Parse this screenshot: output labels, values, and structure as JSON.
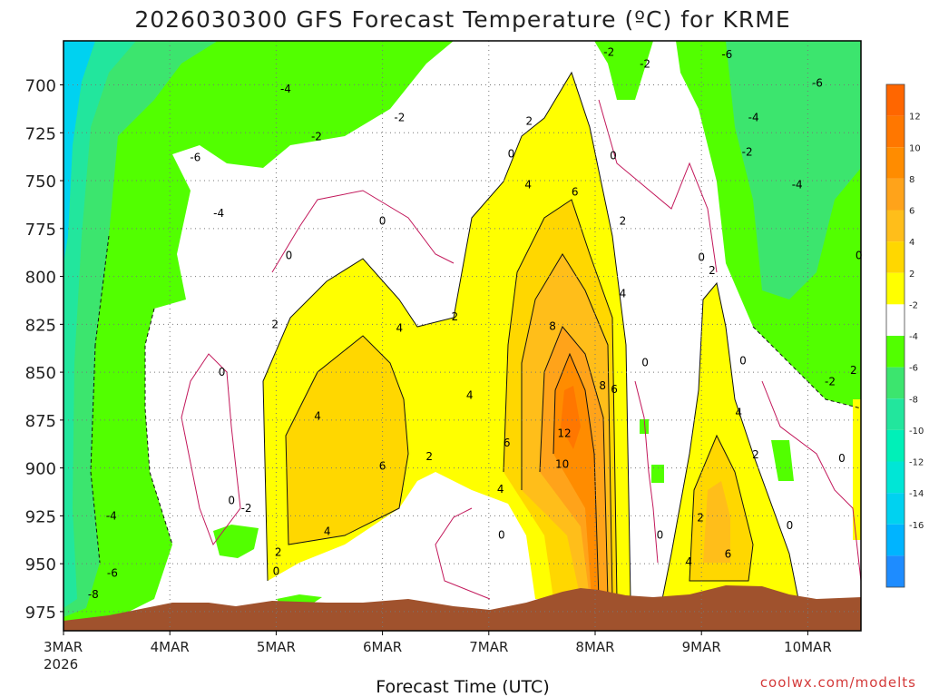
{
  "chart_data": {
    "type": "contour",
    "title": "2026030300 GFS Forecast Temperature (ºC) for KRME",
    "xlabel": "Forecast Time (UTC)",
    "credit": "coolwx.com/modelts",
    "x_ticks": [
      {
        "label": "3MAR",
        "sublabel": "2026",
        "day": 0
      },
      {
        "label": "4MAR",
        "day": 1
      },
      {
        "label": "5MAR",
        "day": 2
      },
      {
        "label": "6MAR",
        "day": 3
      },
      {
        "label": "7MAR",
        "day": 4
      },
      {
        "label": "8MAR",
        "day": 5
      },
      {
        "label": "9MAR",
        "day": 6
      },
      {
        "label": "10MAR",
        "day": 7
      }
    ],
    "xlim": [
      0,
      7.5
    ],
    "y_ticks": [
      700,
      725,
      750,
      775,
      800,
      825,
      850,
      875,
      900,
      925,
      950,
      975
    ],
    "ylim": [
      677,
      985
    ],
    "colorbar": [
      {
        "label": "12",
        "color": "#ff7700"
      },
      {
        "label": "10",
        "color": "#ff8c00"
      },
      {
        "label": "8",
        "color": "#ffa31a"
      },
      {
        "label": "6",
        "color": "#ffbe1a"
      },
      {
        "label": "4",
        "color": "#ffd700"
      },
      {
        "label": "2",
        "color": "#ffff00"
      },
      {
        "label": "-2",
        "color": "#ffffff"
      },
      {
        "label": "-4",
        "color": "#52ff00"
      },
      {
        "label": "-6",
        "color": "#3ce56e"
      },
      {
        "label": "-8",
        "color": "#22e69d"
      },
      {
        "label": "-10",
        "color": "#00f0b8"
      },
      {
        "label": "-12",
        "color": "#00e6d6"
      },
      {
        "label": "-14",
        "color": "#00d2f0"
      },
      {
        "label": "-16",
        "color": "#00b4ff"
      },
      {
        "label": "",
        "color": "#1e8cff"
      }
    ],
    "colorbar_top_color": "#ff6600",
    "terrain_color": "#a0522d",
    "contour_labels": [
      {
        "text": "-2",
        "day": 5.13,
        "p": 683
      },
      {
        "text": "-2",
        "day": 5.47,
        "p": 689
      },
      {
        "text": "-6",
        "day": 6.24,
        "p": 684
      },
      {
        "text": "-4",
        "day": 2.09,
        "p": 702
      },
      {
        "text": "-6",
        "day": 7.09,
        "p": 699
      },
      {
        "text": "-2",
        "day": 3.16,
        "p": 717
      },
      {
        "text": "-4",
        "day": 6.49,
        "p": 717
      },
      {
        "text": "2",
        "day": 4.38,
        "p": 719
      },
      {
        "text": "-2",
        "day": 2.38,
        "p": 727
      },
      {
        "text": "-6",
        "day": 1.24,
        "p": 738
      },
      {
        "text": "0",
        "day": 4.21,
        "p": 736
      },
      {
        "text": "0",
        "day": 5.17,
        "p": 737
      },
      {
        "text": "-2",
        "day": 6.43,
        "p": 735
      },
      {
        "text": "4",
        "day": 4.37,
        "p": 752
      },
      {
        "text": "-4",
        "day": 6.9,
        "p": 752
      },
      {
        "text": "6",
        "day": 4.81,
        "p": 756
      },
      {
        "text": "-4",
        "day": 1.46,
        "p": 767
      },
      {
        "text": "0",
        "day": 3.0,
        "p": 771
      },
      {
        "text": "2",
        "day": 5.26,
        "p": 771
      },
      {
        "text": "0",
        "day": 2.12,
        "p": 789
      },
      {
        "text": "0",
        "day": 6.0,
        "p": 790
      },
      {
        "text": "0",
        "day": 7.48,
        "p": 789
      },
      {
        "text": "2",
        "day": 6.1,
        "p": 797
      },
      {
        "text": "4",
        "day": 5.26,
        "p": 809
      },
      {
        "text": "2",
        "day": 3.68,
        "p": 821
      },
      {
        "text": "8",
        "day": 4.6,
        "p": 826
      },
      {
        "text": "2",
        "day": 1.99,
        "p": 825
      },
      {
        "text": "4",
        "day": 3.16,
        "p": 827
      },
      {
        "text": "0",
        "day": 6.39,
        "p": 844
      },
      {
        "text": "0",
        "day": 5.47,
        "p": 845
      },
      {
        "text": "0",
        "day": 1.49,
        "p": 850
      },
      {
        "text": "2",
        "day": 7.43,
        "p": 849
      },
      {
        "text": "-2",
        "day": 7.21,
        "p": 855
      },
      {
        "text": "8",
        "day": 5.07,
        "p": 857
      },
      {
        "text": "6",
        "day": 5.18,
        "p": 859
      },
      {
        "text": "4",
        "day": 3.82,
        "p": 862
      },
      {
        "text": "4",
        "day": 6.35,
        "p": 871
      },
      {
        "text": "4",
        "day": 2.39,
        "p": 873
      },
      {
        "text": "12",
        "day": 4.71,
        "p": 882
      },
      {
        "text": "6",
        "day": 4.17,
        "p": 887
      },
      {
        "text": "2",
        "day": 3.44,
        "p": 894
      },
      {
        "text": "2",
        "day": 6.51,
        "p": 893
      },
      {
        "text": "0",
        "day": 7.32,
        "p": 895
      },
      {
        "text": "10",
        "day": 4.69,
        "p": 898
      },
      {
        "text": "6",
        "day": 3.0,
        "p": 899
      },
      {
        "text": "4",
        "day": 4.11,
        "p": 911
      },
      {
        "text": "0",
        "day": 1.58,
        "p": 917
      },
      {
        "text": "-2",
        "day": 1.72,
        "p": 921
      },
      {
        "text": "-4",
        "day": 0.45,
        "p": 925
      },
      {
        "text": "2",
        "day": 5.99,
        "p": 926
      },
      {
        "text": "0",
        "day": 6.83,
        "p": 930
      },
      {
        "text": "4",
        "day": 2.48,
        "p": 933
      },
      {
        "text": "0",
        "day": 4.12,
        "p": 935
      },
      {
        "text": "0",
        "day": 5.61,
        "p": 935
      },
      {
        "text": "6",
        "day": 6.25,
        "p": 945
      },
      {
        "text": "2",
        "day": 2.02,
        "p": 944
      },
      {
        "text": "4",
        "day": 5.88,
        "p": 949
      },
      {
        "text": "-6",
        "day": 0.46,
        "p": 955
      },
      {
        "text": "0",
        "day": 2.0,
        "p": 954
      },
      {
        "text": "-8",
        "day": 0.28,
        "p": 966
      }
    ]
  }
}
